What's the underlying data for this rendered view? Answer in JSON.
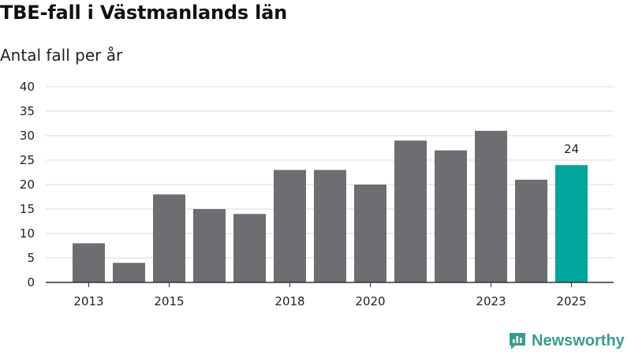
{
  "header": {
    "title": "TBE-fall i Västmanlands län",
    "subtitle": "Antal fall per år"
  },
  "brand": {
    "name": "Newsworthy",
    "icon": "newsworthy-logo-icon",
    "color": "#3b9b8c"
  },
  "colors": {
    "bar": "#6e6d72",
    "highlight": "#00a59b",
    "grid": "#d9d9d9",
    "axis": "#333333"
  },
  "chart_data": {
    "type": "bar",
    "title": "TBE-fall i Västmanlands län",
    "subtitle": "Antal fall per år",
    "categories": [
      "2013",
      "2014",
      "2015",
      "2016",
      "2017",
      "2018",
      "2019",
      "2020",
      "2021",
      "2022",
      "2023",
      "2024",
      "2025"
    ],
    "values": [
      8,
      4,
      18,
      15,
      14,
      23,
      23,
      20,
      29,
      27,
      31,
      21,
      24
    ],
    "x_tick_labels": [
      "2013",
      "2015",
      "2018",
      "2020",
      "2023",
      "2025"
    ],
    "y_ticks": [
      0,
      5,
      10,
      15,
      20,
      25,
      30,
      35,
      40
    ],
    "ylim": [
      0,
      40
    ],
    "grid": true,
    "highlight_category": "2025",
    "data_labels": [
      {
        "category": "2025",
        "text": "24"
      }
    ],
    "xlabel": "",
    "ylabel": ""
  }
}
